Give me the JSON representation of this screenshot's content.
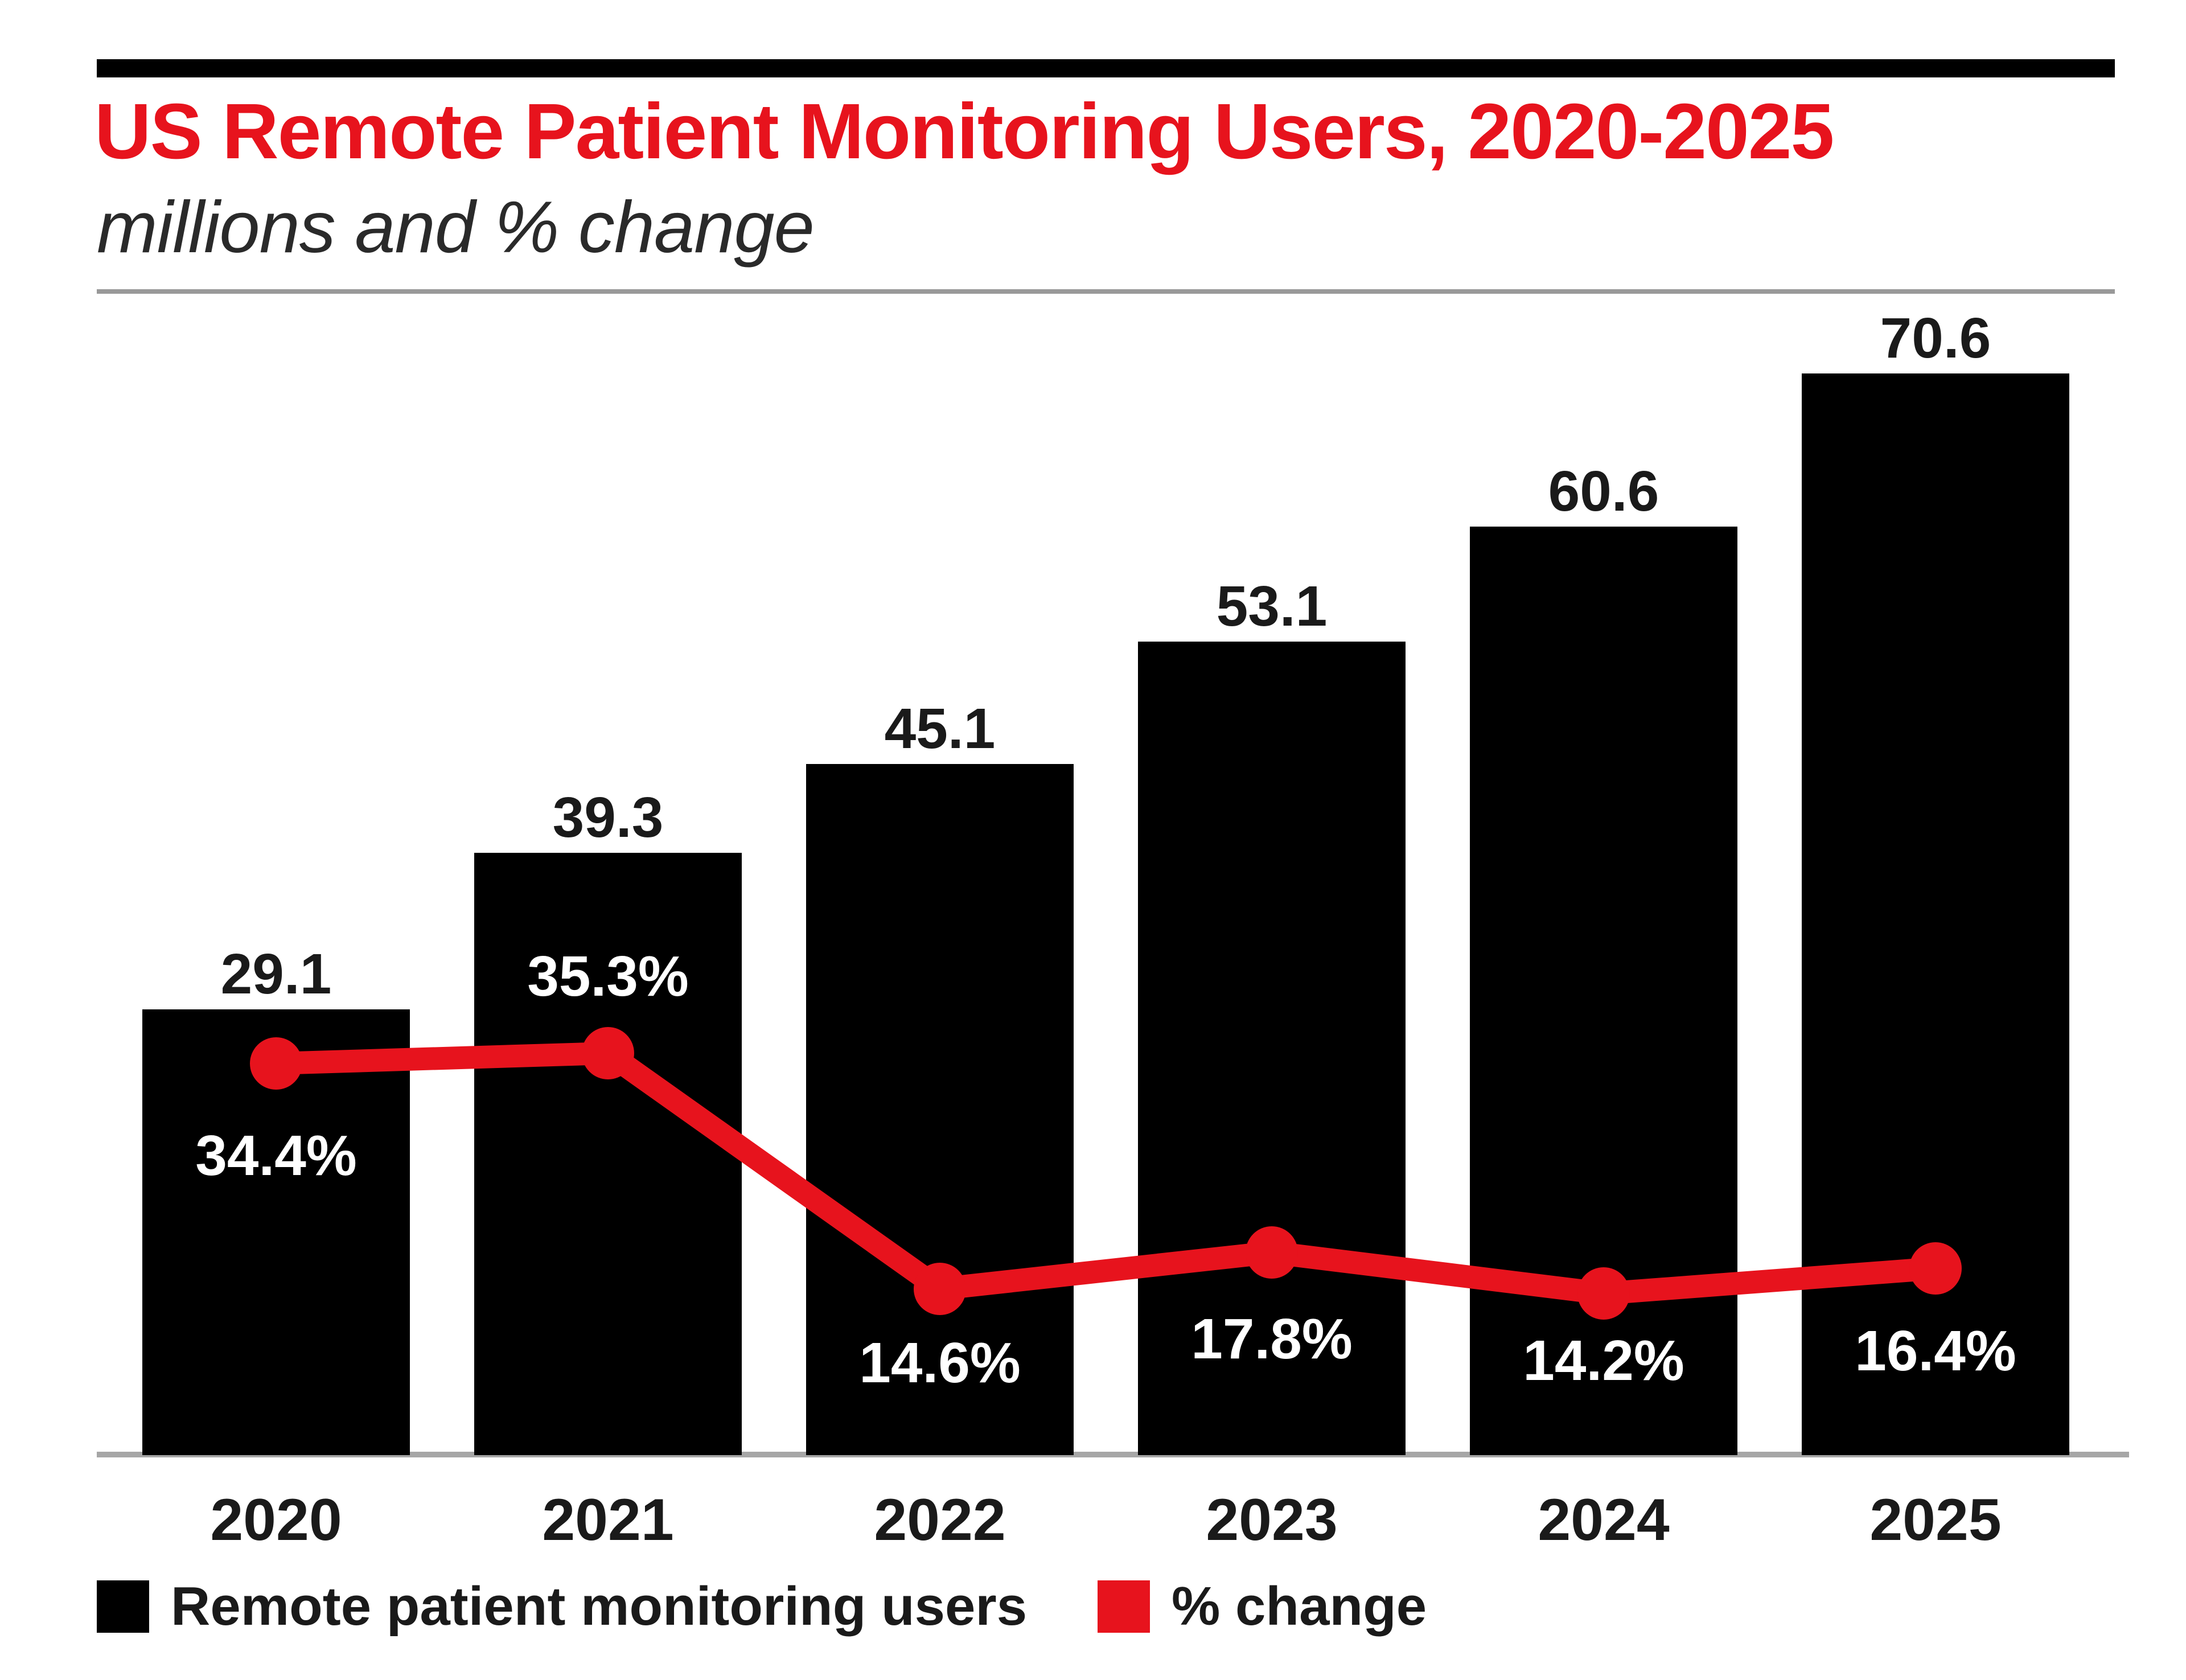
{
  "header": {
    "title": "US Remote Patient Monitoring Users, 2020-2025",
    "subtitle": "millions and % change"
  },
  "colors": {
    "accent_red": "#e7131d",
    "bar_black": "#000000",
    "title_red": "#e7131d",
    "text_dark": "#1a1a1a",
    "label_white": "#ffffff",
    "rule_gray": "#999999",
    "baseline_gray": "#a6a6a6"
  },
  "legend": {
    "items": [
      {
        "label": "Remote patient monitoring users",
        "swatch": "#000000"
      },
      {
        "label": "% change",
        "swatch": "#e7131d"
      }
    ]
  },
  "chart_data": {
    "type": "bar",
    "subtype": "bar-line-combo",
    "title": "US Remote Patient Monitoring Users, 2020-2025",
    "subtitle": "millions and % change",
    "categories": [
      "2020",
      "2021",
      "2022",
      "2023",
      "2024",
      "2025"
    ],
    "series": [
      {
        "name": "Remote patient monitoring users",
        "type": "bar",
        "unit": "millions",
        "values": [
          29.1,
          39.3,
          45.1,
          53.1,
          60.6,
          70.6
        ],
        "data_labels": [
          "29.1",
          "39.3",
          "45.1",
          "53.1",
          "60.6",
          "70.6"
        ],
        "color": "#000000"
      },
      {
        "name": "% change",
        "type": "line",
        "unit": "percent",
        "values": [
          34.4,
          35.3,
          14.6,
          17.8,
          14.2,
          16.4
        ],
        "data_labels": [
          "34.4%",
          "35.3%",
          "14.6%",
          "17.8%",
          "14.2%",
          "16.4%"
        ],
        "label_positions": [
          "below",
          "above",
          "below",
          "below",
          "below",
          "below"
        ],
        "color": "#e7131d"
      }
    ],
    "xlabel": "",
    "ylabel": "",
    "bar_axis_range": [
      0,
      70.6
    ],
    "line_axis_range": [
      0,
      95
    ],
    "grid": false,
    "legend_position": "bottom-left"
  }
}
